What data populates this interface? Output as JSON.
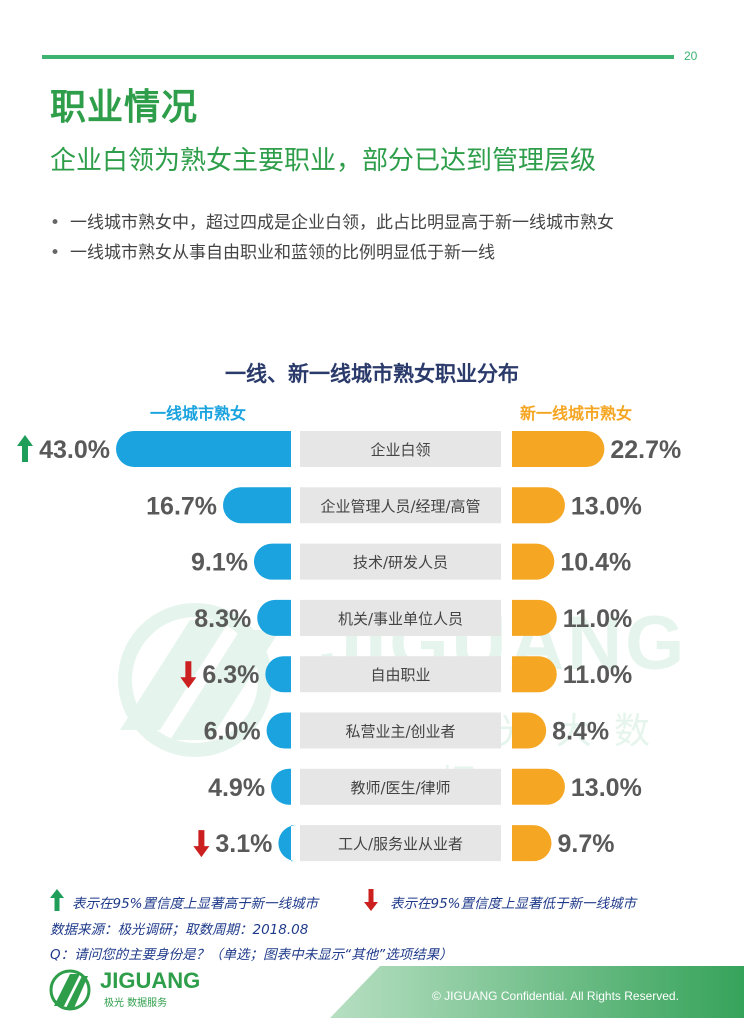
{
  "page_number": "20",
  "title": "职业情况",
  "subtitle": "企业白领为熟女主要职业，部分已达到管理层级",
  "bullets": [
    "一线城市熟女中，超过四成是企业白领，此占比明显高于新一线城市熟女",
    "一线城市熟女从事自由职业和蓝领的比例明显低于新一线"
  ],
  "colors": {
    "accent": "#2e9e4a",
    "left_series": "#1aa3de",
    "right_series": "#f5a623",
    "category_bg": "#e6e6e6",
    "value_text": "#595959",
    "up_arrow": "#1f9e5a",
    "down_arrow": "#cc1f1f"
  },
  "chart_data": {
    "type": "bar",
    "title": "一线、新一线城市熟女职业分布",
    "categories": [
      "企业白领",
      "企业管理人员/经理/高管",
      "技术/研发人员",
      "机关/事业单位人员",
      "自由职业",
      "私营业主/创业者",
      "教师/医生/律师",
      "工人/服务业从业者"
    ],
    "series": [
      {
        "name": "一线城市熟女",
        "values": [
          43.0,
          16.7,
          9.1,
          8.3,
          6.3,
          6.0,
          4.9,
          3.1
        ],
        "labels": [
          "43.0%",
          "16.7%",
          "9.1%",
          "8.3%",
          "6.3%",
          "6.0%",
          "4.9%",
          "3.1%"
        ],
        "significance": [
          "up",
          "",
          "",
          "",
          "down",
          "",
          "",
          "down"
        ]
      },
      {
        "name": "新一线城市熟女",
        "values": [
          22.7,
          13.0,
          10.4,
          11.0,
          11.0,
          8.4,
          13.0,
          9.7
        ],
        "labels": [
          "22.7%",
          "13.0%",
          "10.4%",
          "11.0%",
          "11.0%",
          "8.4%",
          "13.0%",
          "9.7%"
        ]
      }
    ],
    "unit": "%"
  },
  "legend_notes": {
    "up": "表示在95%置信度上显著高于新一线城市",
    "down": "表示在95%置信度上显著低于新一线城市"
  },
  "source": "数据来源：极光调研；取数周期：2018.08",
  "question": "Q：请问您的主要身份是？（单选；图表中未显示“其他”选项结果）",
  "watermark": {
    "text": "JIGUANG",
    "sub": "极光大数据"
  },
  "footer": {
    "logo_text": "JIGUANG",
    "logo_sub": "极光 数据服务",
    "copyright": "© JIGUANG Confidential. All Rights Reserved."
  }
}
